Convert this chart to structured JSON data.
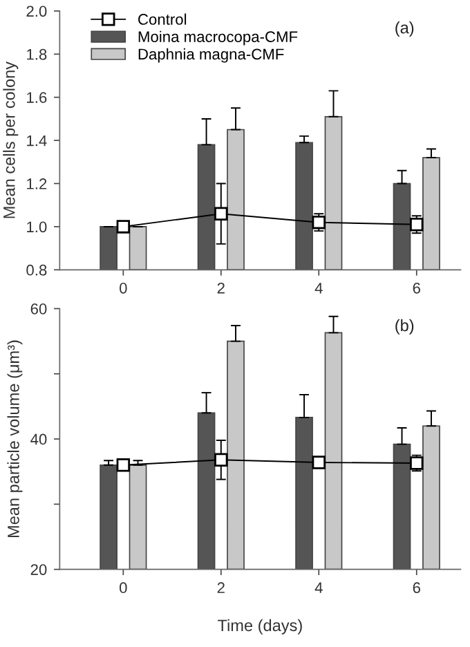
{
  "chart_data": [
    {
      "type": "bar",
      "ylabel": "Mean cells per colony",
      "annotations": [
        "(a)"
      ],
      "x": [
        0,
        2,
        4,
        6
      ],
      "xlim": [
        -1.3,
        6.9
      ],
      "xticks": [
        0,
        2,
        4,
        6
      ],
      "ylim": [
        0.8,
        2.0
      ],
      "yticks": [
        0.8,
        {
          "value": 1.0,
          "label": "1.0"
        },
        1.2,
        1.4,
        1.6,
        1.8,
        {
          "value": 2.0,
          "label": "2.0"
        }
      ],
      "legend": "top left",
      "grid": false,
      "series": [
        {
          "name": "Control",
          "type": "line",
          "marker": "square",
          "color": "#000000",
          "values": [
            1.0,
            1.06,
            1.02,
            1.01
          ],
          "errors": [
            null,
            0.14,
            0.04,
            0.04
          ]
        },
        {
          "name": "Moina macrocopa-CMF",
          "color": "#555555",
          "values": [
            1.0,
            1.38,
            1.39,
            1.2
          ],
          "errors": [
            null,
            [
              1.38,
              1.5
            ],
            [
              1.39,
              1.42
            ],
            [
              1.2,
              1.26
            ]
          ]
        },
        {
          "name": "Daphnia magna-CMF",
          "color": "#c8c8c8",
          "values": [
            1.0,
            1.45,
            1.51,
            1.32
          ],
          "errors": [
            null,
            [
              1.45,
              1.55
            ],
            [
              1.51,
              1.63
            ],
            [
              1.32,
              1.36
            ]
          ]
        }
      ]
    },
    {
      "type": "bar",
      "ylabel": "Mean particle volume (μm³)",
      "xlabel": "Time (days)",
      "annotations": [
        "(b)"
      ],
      "x": [
        0,
        2,
        4,
        6
      ],
      "xlim": [
        -1.3,
        6.9
      ],
      "xticks": [
        0,
        2,
        4,
        6
      ],
      "ylim": [
        20,
        60
      ],
      "yticks": [
        20,
        {
          "value": 30,
          "label": null
        },
        40,
        {
          "value": 50,
          "label": null
        },
        60
      ],
      "legend": false,
      "grid": false,
      "series": [
        {
          "type": "line",
          "marker": "square",
          "color": "#000000",
          "values": [
            36.0,
            36.8,
            36.4,
            36.3
          ],
          "errors": [
            0.7,
            3.0,
            0.6,
            1.2
          ]
        },
        {
          "color": "#555555",
          "values": [
            36.0,
            44.0,
            43.3,
            39.2
          ],
          "errors": [
            [
              36.0,
              36.7
            ],
            [
              44.0,
              47.1
            ],
            [
              43.3,
              46.8
            ],
            [
              39.2,
              41.7
            ]
          ]
        },
        {
          "color": "#c8c8c8",
          "values": [
            36.0,
            55.0,
            56.3,
            42.0
          ],
          "errors": [
            [
              36.0,
              36.7
            ],
            [
              55.0,
              57.4
            ],
            [
              56.3,
              58.8
            ],
            [
              42.0,
              44.3
            ]
          ]
        }
      ]
    }
  ]
}
